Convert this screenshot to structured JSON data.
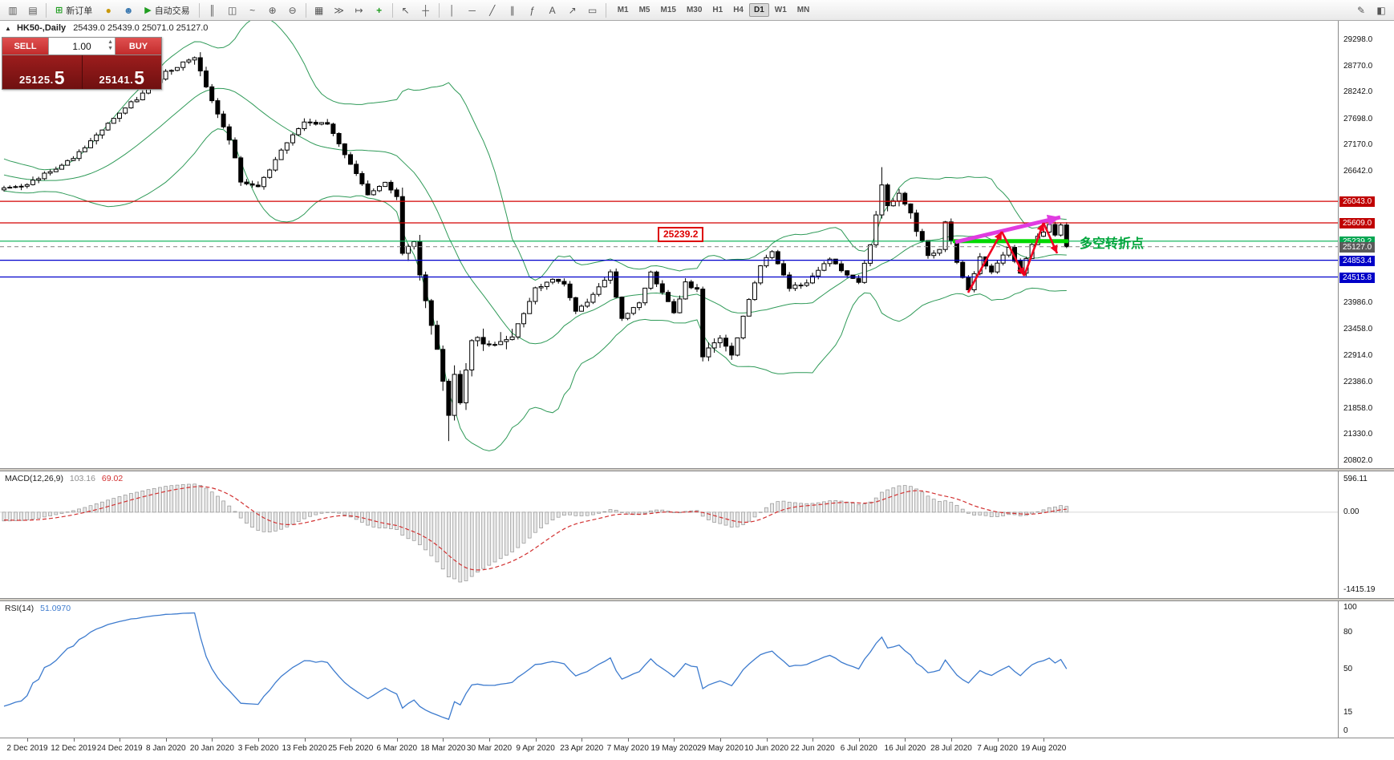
{
  "colors": {
    "bollinger": "#2f9a58",
    "candle_up": "#ffffff",
    "candle_down": "#000000",
    "macd_hist_fill": "#e8e8e8",
    "macd_hist_stroke": "#939393"
  },
  "toolbar": {
    "new_order_label": "新订单",
    "autotrading_label": "自动交易",
    "timeframes": [
      "M1",
      "M5",
      "M15",
      "M30",
      "H1",
      "H4",
      "D1",
      "W1",
      "MN"
    ],
    "active_timeframe": "D1",
    "icons": {
      "new_chart": "▥",
      "profiles": "▤",
      "new_order": "⊞",
      "coins": "●",
      "contacts": "☻",
      "autotrading": "▶",
      "bars": "║",
      "candles": "◫",
      "line_chart": "~",
      "zoom_in": "⊕",
      "zoom_out": "⊖",
      "tile": "▦",
      "scroll_end": "≫",
      "shift": "↦",
      "indicators": "+",
      "cursor": "↖",
      "crosshair": "┼",
      "vline": "│",
      "hline": "─",
      "trendline": "╱",
      "channel": "∥",
      "fibo": "ƒ",
      "text": "A",
      "arrow": "↗",
      "shapes": "▭",
      "edit": "✎",
      "layout": "◧"
    }
  },
  "chart": {
    "collapse_icon": "▲",
    "symbol": "HK50-,Daily",
    "ohlc": "25439.0 25439.0 25071.0 25127.0"
  },
  "trade_panel": {
    "sell_label": "SELL",
    "buy_label": "BUY",
    "volume": "1.00",
    "spinner_up": "▲",
    "spinner_down": "▼",
    "sell_price_main": "25125.",
    "sell_price_big": "5",
    "buy_price_main": "25141.",
    "buy_price_big": "5"
  },
  "price_axis": {
    "ticks": [
      {
        "v": 29298.0,
        "t": "29298.0"
      },
      {
        "v": 28770.0,
        "t": "28770.0"
      },
      {
        "v": 28242.0,
        "t": "28242.0"
      },
      {
        "v": 27698.0,
        "t": "27698.0"
      },
      {
        "v": 27170.0,
        "t": "27170.0"
      },
      {
        "v": 26642.0,
        "t": "26642.0"
      },
      {
        "v": 23986.0,
        "t": "23986.0"
      },
      {
        "v": 23458.0,
        "t": "23458.0"
      },
      {
        "v": 22914.0,
        "t": "22914.0"
      },
      {
        "v": 22386.0,
        "t": "22386.0"
      },
      {
        "v": 21858.0,
        "t": "21858.0"
      },
      {
        "v": 21330.0,
        "t": "21330.0"
      },
      {
        "v": 20802.0,
        "t": "20802.0"
      }
    ],
    "badges": [
      {
        "v": 26043.0,
        "t": "26043.0",
        "bg": "#c00000"
      },
      {
        "v": 25609.0,
        "t": "25609.0",
        "bg": "#c00000"
      },
      {
        "v": 25239.2,
        "t": "25239.2",
        "bg": "#00a651"
      },
      {
        "v": 25127.0,
        "t": "25127.0",
        "bg": "#5a5a5a"
      },
      {
        "v": 24853.4,
        "t": "24853.4",
        "bg": "#0000c8"
      },
      {
        "v": 24515.8,
        "t": "24515.8",
        "bg": "#0000c8"
      }
    ]
  },
  "levels": [
    {
      "v": 26043.0,
      "color": "#d40000",
      "style": "solid"
    },
    {
      "v": 25609.0,
      "color": "#d40000",
      "style": "solid"
    },
    {
      "v": 25239.2,
      "color": "#00b050",
      "style": "solid"
    },
    {
      "v": 25127.0,
      "color": "#909090",
      "style": "dashed"
    },
    {
      "v": 24853.4,
      "color": "#0000cc",
      "style": "solid"
    },
    {
      "v": 24515.8,
      "color": "#0000cc",
      "style": "solid"
    }
  ],
  "macd": {
    "name": "MACD(12,26,9)",
    "value_main": "103.16",
    "value_signal": "69.02",
    "signal_color": "#d23030",
    "scale": {
      "max": {
        "v": 596.11,
        "t": "596.11"
      },
      "zero": {
        "v": 0,
        "t": "0.00"
      },
      "min": {
        "v": -1415.19,
        "t": "-1415.19"
      }
    }
  },
  "rsi": {
    "name": "RSI(14)",
    "value": "51.0970",
    "line_color": "#3d7bce",
    "ticks": [
      {
        "v": 100,
        "t": "100"
      },
      {
        "v": 80,
        "t": "80"
      },
      {
        "v": 50,
        "t": "50"
      },
      {
        "v": 15,
        "t": "15"
      },
      {
        "v": 0,
        "t": "0"
      }
    ]
  },
  "time_axis": {
    "labels": [
      "2 Dec 2019",
      "12 Dec 2019",
      "24 Dec 2019",
      "8 Jan 2020",
      "20 Jan 2020",
      "3 Feb 2020",
      "13 Feb 2020",
      "25 Feb 2020",
      "6 Mar 2020",
      "18 Mar 2020",
      "30 Mar 2020",
      "9 Apr 2020",
      "23 Apr 2020",
      "7 May 2020",
      "19 May 2020",
      "29 May 2020",
      "10 Jun 2020",
      "22 Jun 2020",
      "6 Jul 2020",
      "16 Jul 2020",
      "28 Jul 2020",
      "7 Aug 2020",
      "19 Aug 2020"
    ]
  },
  "annotations": {
    "price_flag": "25239.2",
    "cn_note": "多空转折点",
    "note_color": "#00a63c",
    "flag_color": "#dd0000",
    "arrow_color": "#e03ce0",
    "zigzag_color": "#f00020",
    "highlight_color": "#00d800"
  },
  "chart_data": {
    "type": "candlestick",
    "symbol": "HK50",
    "timeframe": "Daily",
    "ohlc_current": {
      "open": 25439.0,
      "high": 25439.0,
      "low": 25071.0,
      "close": 25127.0
    },
    "y_range": [
      20802,
      29298
    ],
    "bars_visible": 185,
    "indicators": [
      "Bollinger Bands(20,2)",
      "MACD(12,26,9)",
      "RSI(14)"
    ],
    "indicator_values": {
      "macd": 103.16,
      "macd_signal": 69.02,
      "rsi": 51.097
    },
    "horizontal_levels": [
      26043.0,
      25609.0,
      25239.2,
      24853.4,
      24515.8
    ],
    "close_anchors": [
      [
        0,
        26300
      ],
      [
        4,
        26400
      ],
      [
        12,
        26900
      ],
      [
        20,
        27850
      ],
      [
        24,
        28200
      ],
      [
        28,
        28650
      ],
      [
        33,
        28950
      ],
      [
        36,
        28100
      ],
      [
        39,
        27300
      ],
      [
        41,
        26450
      ],
      [
        44,
        26300
      ],
      [
        48,
        27100
      ],
      [
        52,
        27650
      ],
      [
        56,
        27600
      ],
      [
        60,
        26800
      ],
      [
        63,
        26150
      ],
      [
        66,
        26450
      ],
      [
        68,
        26150
      ],
      [
        69,
        25050
      ],
      [
        71,
        25200
      ],
      [
        73,
        24000
      ],
      [
        75,
        23000
      ],
      [
        77,
        21700
      ],
      [
        78,
        22600
      ],
      [
        79,
        21950
      ],
      [
        81,
        23300
      ],
      [
        84,
        23200
      ],
      [
        88,
        23300
      ],
      [
        92,
        24300
      ],
      [
        95,
        24450
      ],
      [
        97,
        24350
      ],
      [
        99,
        23800
      ],
      [
        101,
        24000
      ],
      [
        105,
        24600
      ],
      [
        107,
        23650
      ],
      [
        110,
        24000
      ],
      [
        112,
        24600
      ],
      [
        114,
        24200
      ],
      [
        116,
        23800
      ],
      [
        118,
        24400
      ],
      [
        120,
        24250
      ],
      [
        121,
        22950
      ],
      [
        124,
        23300
      ],
      [
        126,
        22950
      ],
      [
        128,
        23700
      ],
      [
        131,
        24770
      ],
      [
        133,
        25050
      ],
      [
        136,
        24300
      ],
      [
        139,
        24400
      ],
      [
        141,
        24650
      ],
      [
        143,
        24900
      ],
      [
        146,
        24550
      ],
      [
        148,
        24430
      ],
      [
        150,
        25120
      ],
      [
        152,
        26340
      ],
      [
        153,
        25980
      ],
      [
        155,
        26210
      ],
      [
        157,
        25770
      ],
      [
        158,
        25480
      ],
      [
        160,
        24970
      ],
      [
        162,
        25060
      ],
      [
        163,
        25640
      ],
      [
        165,
        24800
      ],
      [
        167,
        24250
      ],
      [
        169,
        24900
      ],
      [
        171,
        24600
      ],
      [
        173,
        24950
      ],
      [
        174,
        25100
      ],
      [
        176,
        24600
      ],
      [
        178,
        25200
      ],
      [
        180,
        25430
      ],
      [
        181,
        25600
      ],
      [
        182,
        25380
      ],
      [
        183,
        25560
      ],
      [
        184,
        25127
      ]
    ]
  }
}
